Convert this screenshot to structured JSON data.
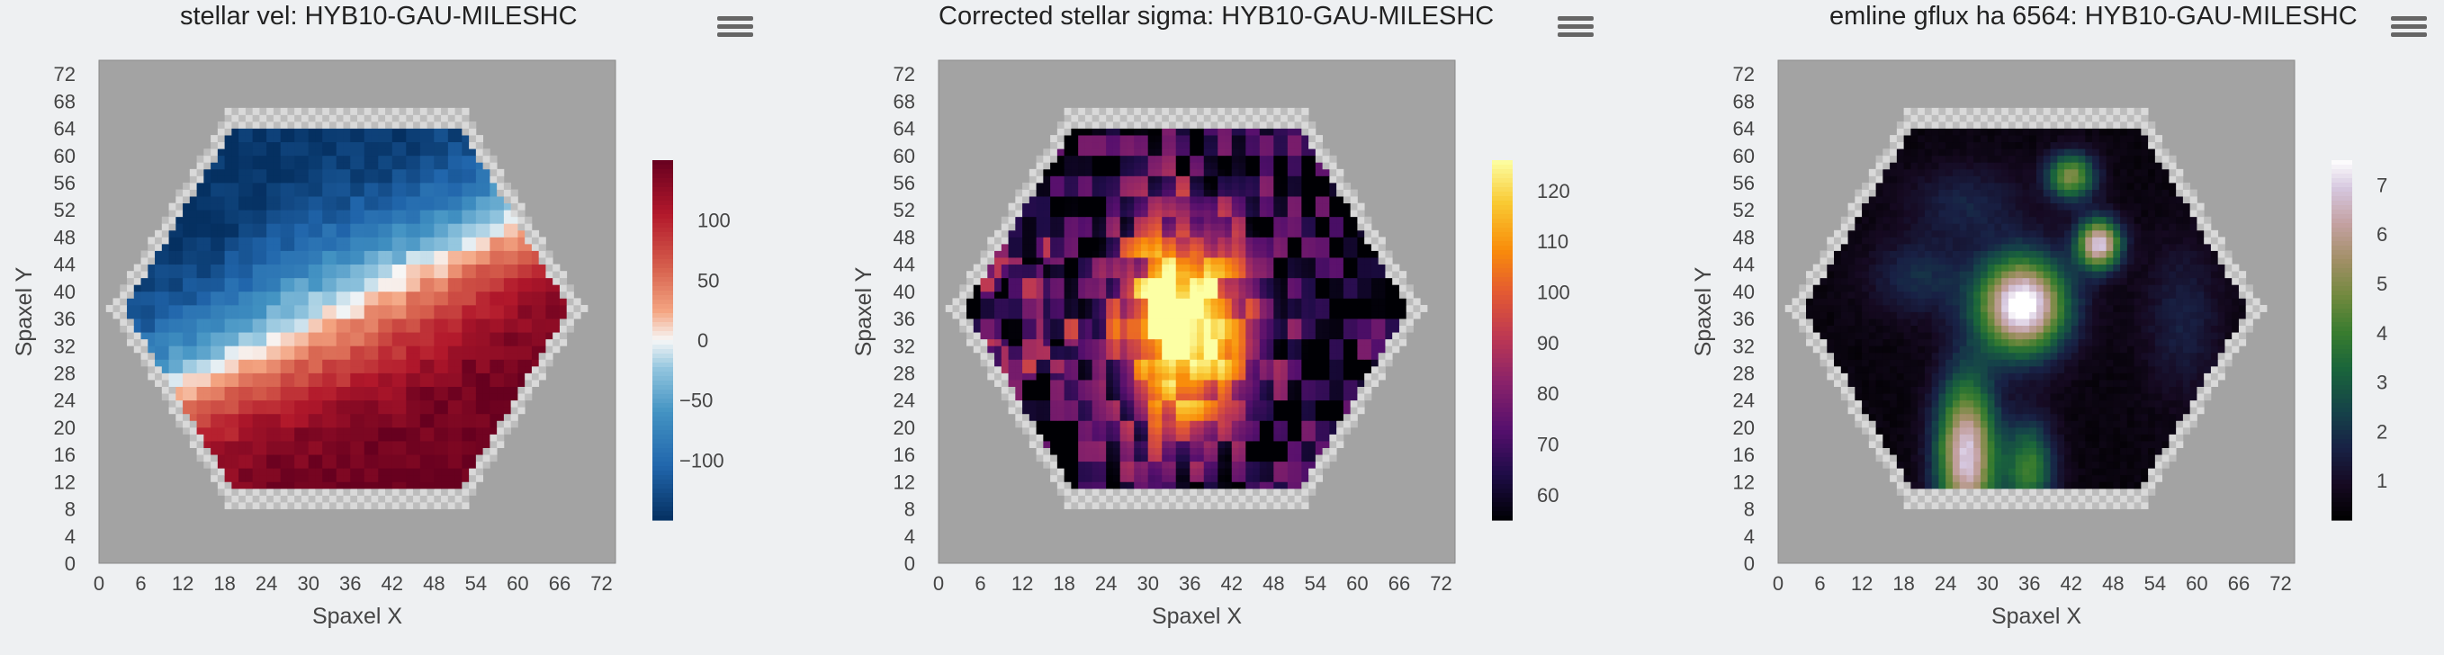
{
  "chart_data": [
    {
      "type": "heatmap",
      "title": "stellar vel: HYB10-GAU-MILESHC",
      "xlabel": "Spaxel X",
      "ylabel": "Spaxel Y",
      "xlim": [
        0,
        74
      ],
      "ylim": [
        0,
        74
      ],
      "xticks": [
        "0",
        "6",
        "12",
        "18",
        "24",
        "30",
        "36",
        "42",
        "48",
        "54",
        "60",
        "66",
        "72"
      ],
      "yticks": [
        "0",
        "4",
        "8",
        "12",
        "16",
        "20",
        "24",
        "28",
        "32",
        "36",
        "40",
        "44",
        "48",
        "52",
        "56",
        "60",
        "64",
        "68",
        "72"
      ],
      "colorbar": {
        "colormap": "RdBu_r",
        "range": [
          -150,
          150
        ],
        "ticks": [
          "-100",
          "-50",
          "0",
          "50",
          "100"
        ],
        "tick_values": [
          -100,
          -50,
          0,
          50,
          100
        ]
      },
      "colors": {
        "masked": "#a3a3a3",
        "hex_edge": "#d9d9d9"
      }
    },
    {
      "type": "heatmap",
      "title": "Corrected stellar sigma: HYB10-GAU-MILESHC",
      "xlabel": "Spaxel X",
      "ylabel": "Spaxel Y",
      "xlim": [
        0,
        74
      ],
      "ylim": [
        0,
        74
      ],
      "xticks": [
        "0",
        "6",
        "12",
        "18",
        "24",
        "30",
        "36",
        "42",
        "48",
        "54",
        "60",
        "66",
        "72"
      ],
      "yticks": [
        "0",
        "4",
        "8",
        "12",
        "16",
        "20",
        "24",
        "28",
        "32",
        "36",
        "40",
        "44",
        "48",
        "52",
        "56",
        "60",
        "64",
        "68",
        "72"
      ],
      "colorbar": {
        "colormap": "inferno",
        "range": [
          55,
          126
        ],
        "ticks": [
          "60",
          "70",
          "80",
          "90",
          "100",
          "110",
          "120"
        ],
        "tick_values": [
          60,
          70,
          80,
          90,
          100,
          110,
          120
        ]
      },
      "colors": {
        "masked": "#a3a3a3",
        "hex_edge": "#d9d9d9"
      }
    },
    {
      "type": "heatmap",
      "title": "emline gflux ha 6564: HYB10-GAU-MILESHC",
      "xlabel": "Spaxel X",
      "ylabel": "Spaxel Y",
      "xlim": [
        0,
        74
      ],
      "ylim": [
        0,
        74
      ],
      "xticks": [
        "0",
        "6",
        "12",
        "18",
        "24",
        "30",
        "36",
        "42",
        "48",
        "54",
        "60",
        "66",
        "72"
      ],
      "yticks": [
        "0",
        "4",
        "8",
        "12",
        "16",
        "20",
        "24",
        "28",
        "32",
        "36",
        "40",
        "44",
        "48",
        "52",
        "56",
        "60",
        "64",
        "68",
        "72"
      ],
      "colorbar": {
        "colormap": "cubehelix",
        "range": [
          0.2,
          7.5
        ],
        "ticks": [
          "1",
          "2",
          "3",
          "4",
          "5",
          "6",
          "7"
        ],
        "tick_values": [
          1,
          2,
          3,
          4,
          5,
          6,
          7
        ]
      },
      "colors": {
        "masked": "#a3a3a3",
        "hex_edge": "#d9d9d9"
      }
    }
  ]
}
